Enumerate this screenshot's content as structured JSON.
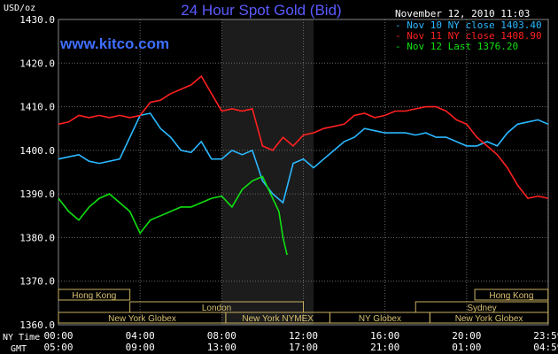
{
  "chart_data": {
    "type": "line",
    "title": "24 Hour Spot Gold (Bid)",
    "watermark": "www.kitco.com",
    "timestamp": "November 12, 2010 11:03",
    "ylabel": "USD/oz",
    "ylim": [
      1360,
      1430
    ],
    "yticks": [
      "1360.0",
      "1370.0",
      "1380.0",
      "1390.0",
      "1400.0",
      "1410.0",
      "1420.0",
      "1430.0"
    ],
    "grid": true,
    "legend": "top-right",
    "x_ny_label": "NY Time",
    "x_gmt_label": "GMT",
    "x_ny_ticks": [
      "00:00",
      "04:00",
      "08:00",
      "12:00",
      "16:00",
      "20:00",
      "23:59"
    ],
    "x_gmt_ticks": [
      "05:00",
      "09:00",
      "13:00",
      "17:00",
      "21:00",
      "01:00",
      "04:59"
    ],
    "shade_range": [
      8,
      12.5
    ],
    "sessions": [
      {
        "label": "Hong Kong",
        "start": 0,
        "end": 3.5,
        "row": 0
      },
      {
        "label": "Hong Kong",
        "start": 20.4,
        "end": 23.99,
        "row": 0
      },
      {
        "label": "London",
        "start": 3.5,
        "end": 12,
        "row": 1
      },
      {
        "label": "Sydney",
        "start": 17.5,
        "end": 23.99,
        "row": 1
      },
      {
        "label": "New York Globex",
        "start": 0,
        "end": 8.2,
        "row": 2
      },
      {
        "label": "New York NYMEX",
        "start": 8.2,
        "end": 13.3,
        "row": 2
      },
      {
        "label": "NY Globex",
        "start": 13.3,
        "end": 18.2,
        "row": 2
      },
      {
        "label": "New York Globex",
        "start": 18.2,
        "end": 23.99,
        "row": 2
      }
    ],
    "series": [
      {
        "name": "Nov 10 NY close 1403.40",
        "color": "#2ab8ff",
        "x": [
          0,
          0.5,
          1,
          1.5,
          2,
          2.5,
          3,
          3.5,
          4,
          4.5,
          5,
          5.5,
          6,
          6.5,
          7,
          7.5,
          8,
          8.5,
          9,
          9.5,
          10,
          10.5,
          11,
          11.5,
          12,
          12.5,
          13,
          13.5,
          14,
          14.5,
          15,
          15.5,
          16,
          16.5,
          17,
          17.5,
          18,
          18.5,
          19,
          19.5,
          20,
          20.5,
          21,
          21.5,
          22,
          22.5,
          23,
          23.5,
          23.99
        ],
        "values": [
          1398,
          1398.5,
          1399,
          1397.5,
          1397,
          1397.5,
          1398,
          1403,
          1408,
          1408.5,
          1405,
          1403,
          1400,
          1399.5,
          1402,
          1398,
          1398,
          1400,
          1399,
          1400,
          1393,
          1390,
          1388,
          1397,
          1398,
          1396,
          1398,
          1400,
          1402,
          1403,
          1405,
          1404.5,
          1404,
          1404,
          1404,
          1403.5,
          1404,
          1403,
          1403,
          1402,
          1401,
          1401,
          1402,
          1401,
          1404,
          1406,
          1406.5,
          1407,
          1406
        ]
      },
      {
        "name": "Nov 11 NY close 1408.90",
        "color": "#ff2020",
        "x": [
          0,
          0.5,
          1,
          1.5,
          2,
          2.5,
          3,
          3.5,
          4,
          4.5,
          5,
          5.5,
          6,
          6.5,
          7,
          7.5,
          8,
          8.5,
          9,
          9.5,
          10,
          10.5,
          11,
          11.5,
          12,
          12.5,
          13,
          13.5,
          14,
          14.5,
          15,
          15.5,
          16,
          16.5,
          17,
          17.5,
          18,
          18.5,
          19,
          19.5,
          20,
          20.5,
          21,
          21.5,
          22,
          22.5,
          23,
          23.5,
          23.99
        ],
        "values": [
          1406,
          1406.5,
          1408,
          1407.5,
          1408,
          1407.5,
          1408,
          1407.5,
          1408,
          1411,
          1411.5,
          1413,
          1414,
          1415,
          1417,
          1413,
          1409,
          1409.5,
          1409,
          1409.5,
          1401,
          1400,
          1403,
          1401,
          1403.5,
          1404,
          1405,
          1405.5,
          1406,
          1408,
          1408.5,
          1407.5,
          1408,
          1409,
          1409,
          1409.5,
          1410,
          1410,
          1409,
          1407,
          1406,
          1403,
          1401,
          1399,
          1396,
          1392,
          1389,
          1389.5,
          1389
        ]
      },
      {
        "name": "Nov 12 Last 1376.20",
        "color": "#10e010",
        "x": [
          0,
          0.5,
          1,
          1.5,
          2,
          2.5,
          3,
          3.5,
          4,
          4.5,
          5,
          5.5,
          6,
          6.5,
          7,
          7.5,
          8,
          8.5,
          9,
          9.5,
          10,
          10.5,
          10.8,
          11,
          11.2
        ],
        "values": [
          1389,
          1386,
          1384,
          1387,
          1389,
          1390,
          1388,
          1386,
          1381,
          1384,
          1385,
          1386,
          1387,
          1387,
          1388,
          1389,
          1389.5,
          1387,
          1391,
          1393,
          1394,
          1389,
          1386,
          1380,
          1376
        ]
      }
    ]
  }
}
